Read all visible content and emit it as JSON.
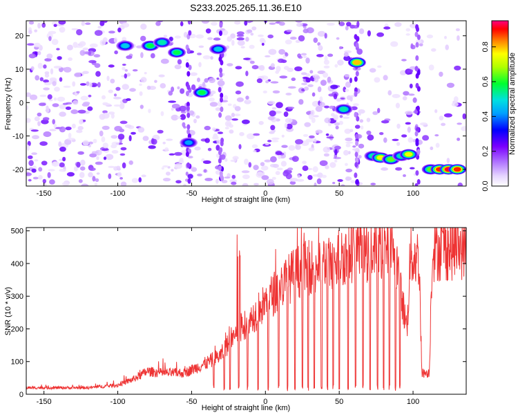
{
  "title": "S233.2025.265.11.36.E10",
  "chart_data": [
    {
      "type": "heatmap",
      "xlabel": "Height of straight line (km)",
      "ylabel": "Frequency (Hz)",
      "xlim": [
        -162,
        136
      ],
      "ylim": [
        -25,
        24.5
      ],
      "xticks": [
        -150,
        -100,
        -50,
        0,
        50,
        100
      ],
      "yticks": [
        -20,
        -10,
        0,
        10,
        20
      ],
      "colorbar": {
        "label": "Normalized spectral amplitude",
        "ticks": [
          0.0,
          0.2,
          0.4,
          0.6,
          0.8
        ],
        "range": [
          0.0,
          0.95
        ],
        "colormap": [
          "#ffffff",
          "#d8b8ff",
          "#9a4dff",
          "#6a00ff",
          "#0000ff",
          "#00a0ff",
          "#00e0e0",
          "#00ff40",
          "#a0ff00",
          "#ffff00",
          "#ff8000",
          "#ff0000",
          "#ff0080"
        ]
      },
      "hotspots": [
        {
          "x": -95,
          "y": 17,
          "amp": 0.45
        },
        {
          "x": -78,
          "y": 17,
          "amp": 0.55
        },
        {
          "x": -70,
          "y": 18,
          "amp": 0.5
        },
        {
          "x": -60,
          "y": 15,
          "amp": 0.55
        },
        {
          "x": -52,
          "y": -12,
          "amp": 0.4
        },
        {
          "x": -43,
          "y": 3,
          "amp": 0.55
        },
        {
          "x": -32,
          "y": 16,
          "amp": 0.45
        },
        {
          "x": 53,
          "y": -2,
          "amp": 0.5
        },
        {
          "x": 62,
          "y": 12,
          "amp": 0.75
        },
        {
          "x": 73,
          "y": -16,
          "amp": 0.5
        },
        {
          "x": 78,
          "y": -16.5,
          "amp": 0.7
        },
        {
          "x": 85,
          "y": -17,
          "amp": 0.6
        },
        {
          "x": 92,
          "y": -16,
          "amp": 0.5
        },
        {
          "x": 97,
          "y": -15.5,
          "amp": 0.7
        },
        {
          "x": 112,
          "y": -20,
          "amp": 0.6
        },
        {
          "x": 118,
          "y": -20,
          "amp": 0.85
        },
        {
          "x": 124,
          "y": -20,
          "amp": 0.9
        },
        {
          "x": 130,
          "y": -20,
          "amp": 0.85
        }
      ]
    },
    {
      "type": "line",
      "xlabel": "Height of straight line (km)",
      "ylabel": "SNR (10 * v/v)",
      "xlim": [
        -162,
        136
      ],
      "ylim": [
        0,
        510
      ],
      "xticks": [
        -150,
        -100,
        -50,
        0,
        50,
        100
      ],
      "yticks": [
        0,
        100,
        200,
        300,
        400,
        500
      ],
      "line_color": "#ee3333",
      "envelope": [
        {
          "x": -162,
          "y": 20
        },
        {
          "x": -120,
          "y": 20
        },
        {
          "x": -100,
          "y": 28
        },
        {
          "x": -90,
          "y": 45
        },
        {
          "x": -80,
          "y": 70
        },
        {
          "x": -70,
          "y": 65
        },
        {
          "x": -55,
          "y": 65
        },
        {
          "x": -40,
          "y": 95
        },
        {
          "x": -30,
          "y": 120
        },
        {
          "x": -20,
          "y": 190
        },
        {
          "x": -10,
          "y": 230
        },
        {
          "x": 0,
          "y": 280
        },
        {
          "x": 10,
          "y": 330
        },
        {
          "x": 20,
          "y": 370
        },
        {
          "x": 30,
          "y": 390
        },
        {
          "x": 40,
          "y": 400
        },
        {
          "x": 50,
          "y": 420
        },
        {
          "x": 60,
          "y": 440
        },
        {
          "x": 70,
          "y": 440
        },
        {
          "x": 80,
          "y": 445
        },
        {
          "x": 88,
          "y": 440
        },
        {
          "x": 92,
          "y": 300
        },
        {
          "x": 96,
          "y": 200
        },
        {
          "x": 98,
          "y": 420
        },
        {
          "x": 104,
          "y": 420
        },
        {
          "x": 106,
          "y": 65
        },
        {
          "x": 111,
          "y": 65
        },
        {
          "x": 113,
          "y": 440
        },
        {
          "x": 136,
          "y": 450
        }
      ],
      "spike_max": 490,
      "dropouts": [
        -35,
        -28,
        -24,
        -18,
        -12,
        -5,
        2,
        9,
        15,
        20,
        25,
        29,
        33,
        38,
        42,
        46,
        50,
        56,
        61,
        66,
        71,
        76,
        80,
        84,
        88,
        91
      ]
    }
  ]
}
